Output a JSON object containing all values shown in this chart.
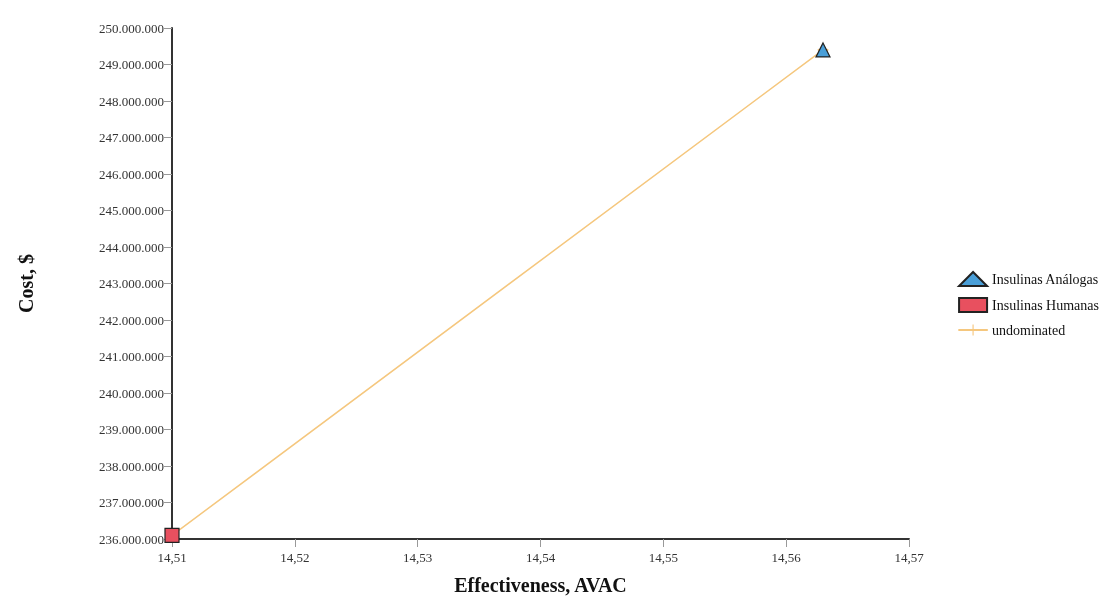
{
  "chart_data": {
    "type": "scatter",
    "xlabel": "Effectiveness, AVAC",
    "ylabel": "Cost, $",
    "x": [
      14.51,
      14.563
    ],
    "xlim": [
      14.51,
      14.57
    ],
    "xticks": [
      {
        "value": 14.51,
        "label": "14,51"
      },
      {
        "value": 14.52,
        "label": "14,52"
      },
      {
        "value": 14.53,
        "label": "14,53"
      },
      {
        "value": 14.54,
        "label": "14,54"
      },
      {
        "value": 14.55,
        "label": "14,55"
      },
      {
        "value": 14.56,
        "label": "14,56"
      },
      {
        "value": 14.57,
        "label": "14,57"
      }
    ],
    "ylim": [
      236000000,
      250000000
    ],
    "yticks": [
      {
        "value": 236000000,
        "label": "236.000.000"
      },
      {
        "value": 237000000,
        "label": "237.000.000"
      },
      {
        "value": 238000000,
        "label": "238.000.000"
      },
      {
        "value": 239000000,
        "label": "239.000.000"
      },
      {
        "value": 240000000,
        "label": "240.000.000"
      },
      {
        "value": 241000000,
        "label": "241.000.000"
      },
      {
        "value": 242000000,
        "label": "242.000.000"
      },
      {
        "value": 243000000,
        "label": "243.000.000"
      },
      {
        "value": 244000000,
        "label": "244.000.000"
      },
      {
        "value": 245000000,
        "label": "245.000.000"
      },
      {
        "value": 246000000,
        "label": "246.000.000"
      },
      {
        "value": 247000000,
        "label": "247.000.000"
      },
      {
        "value": 248000000,
        "label": "248.000.000"
      },
      {
        "value": 249000000,
        "label": "249.000.000"
      },
      {
        "value": 250000000,
        "label": "250.000.000"
      }
    ],
    "series": [
      {
        "name": "Insulinas Análogas",
        "color": "#4a9fd8",
        "marker": "triangle",
        "values": [
          null,
          249400000
        ]
      },
      {
        "name": "Insulinas Humanas",
        "color": "#e8505f",
        "marker": "square",
        "values": [
          236100000,
          null
        ]
      },
      {
        "name": "undominated",
        "type": "line",
        "color": "#f5c77e",
        "marker": "cross",
        "values": [
          236100000,
          249400000
        ]
      }
    ],
    "legend": "right",
    "grid": false
  }
}
